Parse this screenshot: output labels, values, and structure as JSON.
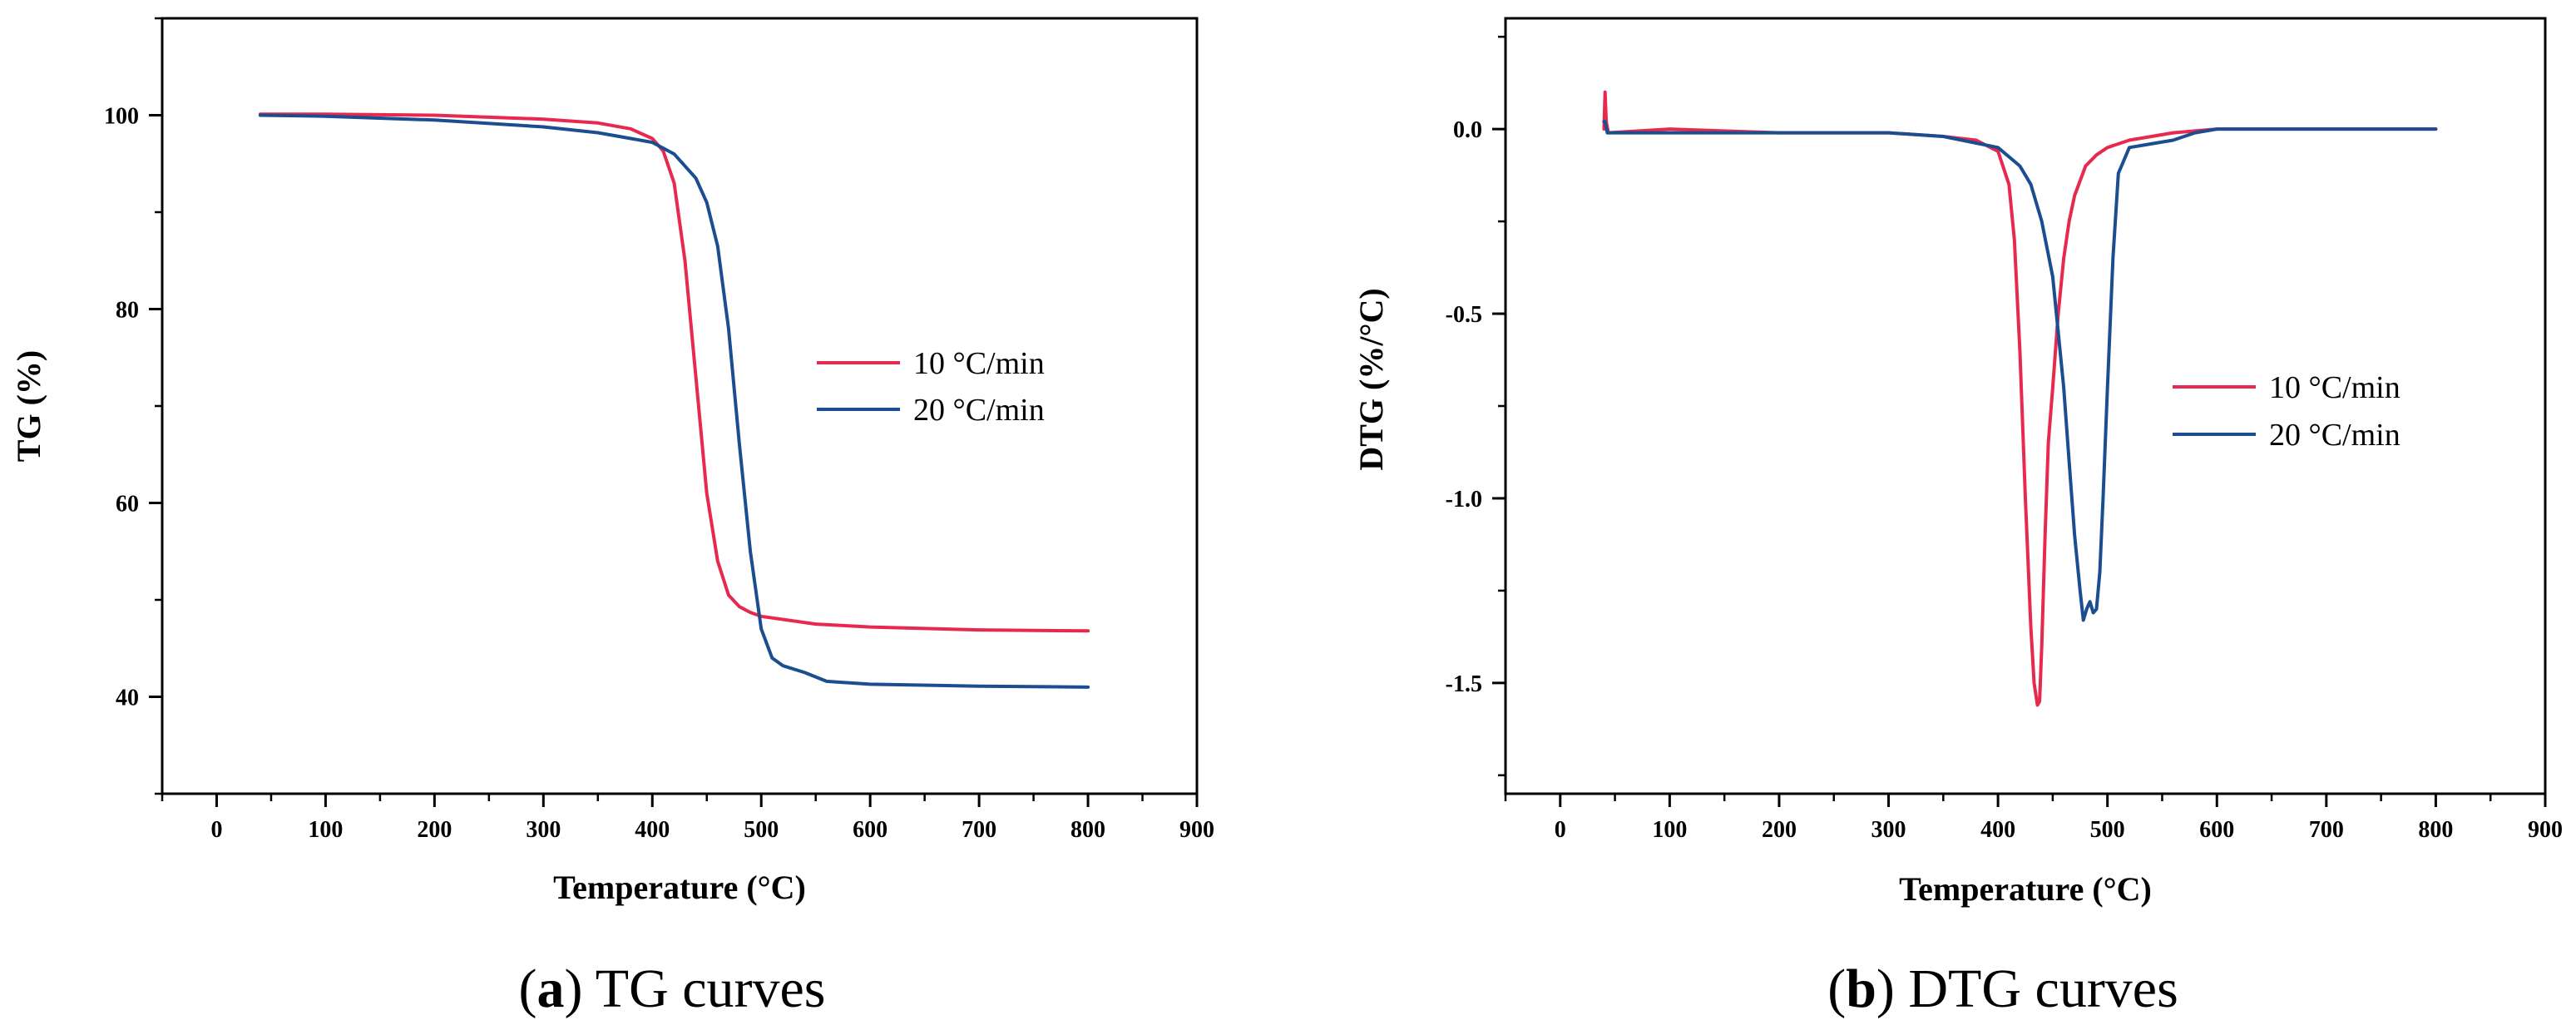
{
  "chart_data": [
    {
      "type": "line",
      "panel": "a",
      "caption_label": "a",
      "caption_text": "TG curves",
      "xlabel": "Temperature (°C)",
      "ylabel": "TG (%)",
      "xlim": [
        -50,
        900
      ],
      "ylim": [
        30,
        110
      ],
      "xticks": [
        0,
        100,
        200,
        300,
        400,
        500,
        600,
        700,
        800,
        900
      ],
      "yticks": [
        40,
        60,
        80,
        100
      ],
      "legend_position": "center-right",
      "series": [
        {
          "name": "10 °C/min",
          "color": "#e8294f",
          "x": [
            40,
            100,
            200,
            300,
            350,
            380,
            400,
            410,
            420,
            430,
            440,
            450,
            460,
            470,
            480,
            490,
            500,
            550,
            600,
            700,
            800
          ],
          "y": [
            100.1,
            100.1,
            100.0,
            99.6,
            99.2,
            98.6,
            97.6,
            96.3,
            93.0,
            85.0,
            73.0,
            61.0,
            54.0,
            50.5,
            49.3,
            48.7,
            48.3,
            47.5,
            47.2,
            46.9,
            46.8
          ]
        },
        {
          "name": "20 °C/min",
          "color": "#1b4d91",
          "x": [
            40,
            100,
            200,
            300,
            350,
            400,
            420,
            440,
            450,
            460,
            470,
            480,
            490,
            500,
            510,
            520,
            540,
            560,
            600,
            700,
            800
          ],
          "y": [
            100.0,
            99.9,
            99.5,
            98.8,
            98.2,
            97.2,
            96.0,
            93.5,
            91.0,
            86.5,
            78.0,
            66.0,
            55.0,
            47.0,
            44.0,
            43.2,
            42.5,
            41.6,
            41.3,
            41.1,
            41.0
          ]
        }
      ]
    },
    {
      "type": "line",
      "panel": "b",
      "caption_label": "b",
      "caption_text": "DTG curves",
      "xlabel": "Temperature (°C)",
      "ylabel": "DTG (%/°C)",
      "xlim": [
        -50,
        900
      ],
      "ylim": [
        -1.8,
        0.3
      ],
      "xticks": [
        0,
        100,
        200,
        300,
        400,
        500,
        600,
        700,
        800,
        900
      ],
      "yticks": [
        0.0,
        -0.5,
        -1.0,
        -1.5
      ],
      "ytick_labels": [
        "0.0",
        "-0.5",
        "-1.0",
        "-1.5"
      ],
      "legend_position": "center-right",
      "series": [
        {
          "name": "10 °C/min",
          "color": "#e8294f",
          "x": [
            40,
            41,
            42,
            44,
            100,
            200,
            300,
            350,
            380,
            400,
            410,
            415,
            420,
            425,
            430,
            433,
            436,
            438,
            440,
            443,
            446,
            450,
            455,
            460,
            465,
            470,
            480,
            490,
            500,
            520,
            560,
            600,
            700,
            800
          ],
          "y": [
            0.0,
            0.1,
            0.02,
            -0.01,
            0.0,
            -0.01,
            -0.01,
            -0.02,
            -0.03,
            -0.06,
            -0.15,
            -0.3,
            -0.6,
            -1.0,
            -1.35,
            -1.5,
            -1.56,
            -1.55,
            -1.4,
            -1.1,
            -0.85,
            -0.7,
            -0.5,
            -0.35,
            -0.25,
            -0.18,
            -0.1,
            -0.07,
            -0.05,
            -0.03,
            -0.01,
            0.0,
            0.0,
            0.0
          ]
        },
        {
          "name": "20 °C/min",
          "color": "#1b4d91",
          "x": [
            40,
            41,
            43,
            100,
            200,
            300,
            350,
            400,
            420,
            430,
            440,
            450,
            460,
            465,
            470,
            475,
            478,
            481,
            484,
            487,
            490,
            493,
            496,
            500,
            505,
            510,
            520,
            540,
            560,
            580,
            600,
            700,
            800
          ],
          "y": [
            0.02,
            0.02,
            -0.01,
            -0.01,
            -0.01,
            -0.01,
            -0.02,
            -0.05,
            -0.1,
            -0.15,
            -0.25,
            -0.4,
            -0.7,
            -0.9,
            -1.1,
            -1.25,
            -1.33,
            -1.3,
            -1.28,
            -1.31,
            -1.3,
            -1.2,
            -1.0,
            -0.7,
            -0.35,
            -0.12,
            -0.05,
            -0.04,
            -0.03,
            -0.01,
            0.0,
            0.0,
            0.0
          ]
        }
      ]
    }
  ]
}
